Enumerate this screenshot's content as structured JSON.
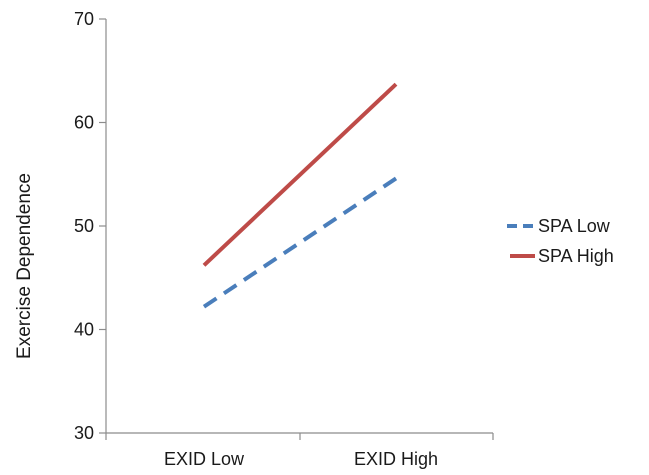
{
  "chart_data": {
    "type": "line",
    "title": "",
    "xlabel": "",
    "ylabel": "Exercise Dependence",
    "categories": [
      "EXID Low",
      "EXID High"
    ],
    "ylim": [
      30,
      70
    ],
    "yticks": [
      30,
      40,
      50,
      60,
      70
    ],
    "grid": false,
    "legend_position": "right",
    "series": [
      {
        "name": "SPA Low",
        "values": [
          42.2,
          54.6
        ],
        "color": "#4a7ebb",
        "dash": "dashed"
      },
      {
        "name": "SPA High",
        "values": [
          46.2,
          63.7
        ],
        "color": "#be4b48",
        "dash": "solid"
      }
    ]
  }
}
